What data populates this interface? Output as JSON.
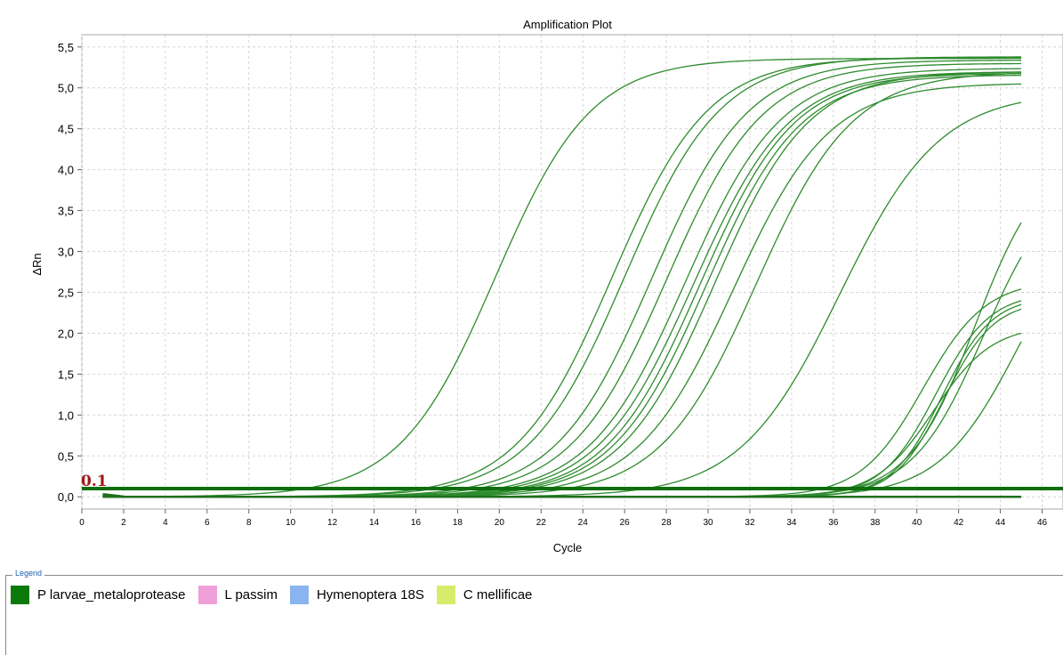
{
  "chart_data": {
    "type": "line",
    "title": "Amplification Plot",
    "xlabel": "Cycle",
    "ylabel": "ΔRn",
    "xlim": [
      0,
      47
    ],
    "ylim": [
      -0.15,
      5.65
    ],
    "x_ticks": [
      0,
      2,
      4,
      6,
      8,
      10,
      12,
      14,
      16,
      18,
      20,
      22,
      24,
      26,
      28,
      30,
      32,
      34,
      36,
      38,
      40,
      42,
      44,
      46
    ],
    "y_ticks": [
      "0,0",
      "0,5",
      "1,0",
      "1,5",
      "2,0",
      "2,5",
      "3,0",
      "3,5",
      "4,0",
      "4,5",
      "5,0",
      "5,5"
    ],
    "grid": true,
    "threshold": {
      "value": 0.1,
      "label": "0.1",
      "color": "#a01818"
    },
    "line_color": "#2e8b2e",
    "cycles": {
      "start": 1,
      "end": 45
    },
    "curves": [
      {
        "max": 5.36,
        "midpoint": 19.8,
        "slope": 2.3
      },
      {
        "max": 5.37,
        "midpoint": 25.4,
        "slope": 2.3
      },
      {
        "max": 5.38,
        "midpoint": 26.0,
        "slope": 2.3
      },
      {
        "max": 5.34,
        "midpoint": 27.3,
        "slope": 2.3
      },
      {
        "max": 5.3,
        "midpoint": 28.0,
        "slope": 2.3
      },
      {
        "max": 5.24,
        "midpoint": 28.9,
        "slope": 2.3
      },
      {
        "max": 5.2,
        "midpoint": 29.3,
        "slope": 2.3
      },
      {
        "max": 5.18,
        "midpoint": 29.6,
        "slope": 2.25
      },
      {
        "max": 5.16,
        "midpoint": 29.9,
        "slope": 2.25
      },
      {
        "max": 5.2,
        "midpoint": 30.3,
        "slope": 2.25
      },
      {
        "max": 5.06,
        "midpoint": 31.2,
        "slope": 2.3
      },
      {
        "max": 5.2,
        "midpoint": 32.3,
        "slope": 2.3
      },
      {
        "max": 4.95,
        "midpoint": 36.3,
        "slope": 2.4
      },
      {
        "max": 4.2,
        "midpoint": 42.8,
        "slope": 1.6
      },
      {
        "max": 3.95,
        "midpoint": 43.2,
        "slope": 1.7
      },
      {
        "max": 2.65,
        "midpoint": 40.3,
        "slope": 1.5
      },
      {
        "max": 2.5,
        "midpoint": 40.9,
        "slope": 1.3
      },
      {
        "max": 2.45,
        "midpoint": 41.2,
        "slope": 1.2
      },
      {
        "max": 2.4,
        "midpoint": 41.3,
        "slope": 1.2
      },
      {
        "max": 2.1,
        "midpoint": 40.8,
        "slope": 1.4
      },
      {
        "max": 3.7,
        "midpoint": 44.9,
        "slope": 1.9
      }
    ],
    "baseline_segment": {
      "from": 1,
      "to": 45,
      "value": 0.0
    }
  },
  "legend": {
    "caption": "Legend",
    "items": [
      {
        "label": "P larvae_metaloprotease",
        "color": "#0a7a0a"
      },
      {
        "label": "L passim",
        "color": "#f0a0d8"
      },
      {
        "label": "Hymenoptera 18S",
        "color": "#8ab4f0"
      },
      {
        "label": "C mellificae",
        "color": "#d6ec6a"
      }
    ]
  }
}
